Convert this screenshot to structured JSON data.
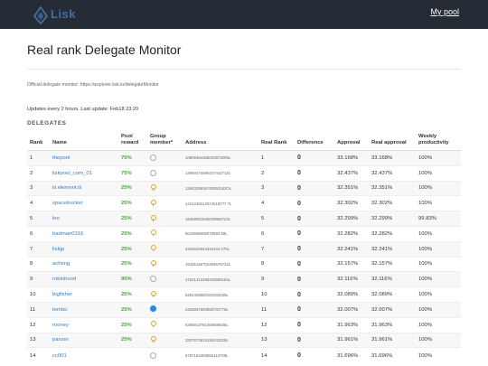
{
  "nav": {
    "logo_text": "Lisk",
    "link": "My pool"
  },
  "page": {
    "title": "Real rank Delegate Monitor",
    "official": "Official delegate monitor: https://explorer.lisk.io/delegateMonitor",
    "updates": "Updates every 2 hours. Last update: Feb18 23:20",
    "section": "DELEGATES"
  },
  "columns": {
    "rank": "Rank",
    "name": "Name",
    "reward": "Pool reward",
    "member": "Group member*",
    "address": "Address",
    "real_rank": "Real Rank",
    "difference": "Difference",
    "approval": "Approval",
    "real_approval": "Real approval",
    "productivity": "Weekly productivity"
  },
  "rows": [
    {
      "rank": "1",
      "name": "thepool",
      "reward": "70%",
      "member": "empty",
      "address": "10809494368003873009L",
      "real_rank": "1",
      "diff": "0",
      "approval": "33.168%",
      "real_approval": "33.168%",
      "productivity": "100%"
    },
    {
      "rank": "2",
      "name": "liskpool_com_01",
      "reward": "75%",
      "member": "empty",
      "address": "14593474056247442712L",
      "real_rank": "2",
      "diff": "0",
      "approval": "32.437%",
      "real_approval": "32.437%",
      "productivity": "100%"
    },
    {
      "rank": "3",
      "name": "iii.element.iii",
      "reward": "25%",
      "member": "pin",
      "address": "1394325616740553182OL",
      "real_rank": "3",
      "diff": "0",
      "approval": "32.351%",
      "real_approval": "32.351%",
      "productivity": "100%"
    },
    {
      "rank": "4",
      "name": "spacetrucker",
      "reward": "25%",
      "member": "pin",
      "address": "1421248412674618777 7L",
      "real_rank": "4",
      "diff": "0",
      "approval": "32.302%",
      "real_approval": "32.302%",
      "productivity": "100%"
    },
    {
      "rank": "5",
      "name": "leo",
      "reward": "25%",
      "member": "pin",
      "address": "15458001840048965724L",
      "real_rank": "5",
      "diff": "0",
      "approval": "32.299%",
      "real_approval": "32.299%",
      "productivity": "99.83%"
    },
    {
      "rank": "6",
      "name": "badman0316",
      "reward": "25%",
      "member": "pin",
      "address": "8019598606079593 88L",
      "real_rank": "6",
      "diff": "0",
      "approval": "32.282%",
      "real_approval": "32.282%",
      "productivity": "100%"
    },
    {
      "rank": "7",
      "name": "liskjp",
      "reward": "25%",
      "member": "pin",
      "address": "4402625644334434 270L",
      "real_rank": "7",
      "diff": "0",
      "approval": "32.241%",
      "real_approval": "32.241%",
      "productivity": "100%"
    },
    {
      "rank": "8",
      "name": "acheng",
      "reward": "25%",
      "member": "pin",
      "address": "15435156702499576722L",
      "real_rank": "8",
      "diff": "0",
      "approval": "32.157%",
      "real_approval": "32.157%",
      "productivity": "100%"
    },
    {
      "rank": "9",
      "name": "robinhood",
      "reward": "90%",
      "member": "empty",
      "address": "17621212458226596154L",
      "real_rank": "9",
      "diff": "0",
      "approval": "32.116%",
      "real_approval": "32.116%",
      "productivity": "100%"
    },
    {
      "rank": "10",
      "name": "bigfisher",
      "reward": "25%",
      "member": "pin",
      "address": "6281405850162033335L",
      "real_rank": "10",
      "diff": "0",
      "approval": "32.089%",
      "real_approval": "32.089%",
      "productivity": "100%"
    },
    {
      "rank": "11",
      "name": "tembo",
      "reward": "25%",
      "member": "blue",
      "address": "2433857900558702776L",
      "real_rank": "11",
      "diff": "0",
      "approval": "32.007%",
      "real_approval": "32.007%",
      "productivity": "100%"
    },
    {
      "rank": "12",
      "name": "rooney",
      "reward": "25%",
      "member": "pin",
      "address": "6356913781456505636L",
      "real_rank": "12",
      "diff": "0",
      "approval": "31.963%",
      "real_approval": "31.963%",
      "productivity": "100%"
    },
    {
      "rank": "13",
      "name": "panzer",
      "reward": "25%",
      "member": "pin",
      "address": "3207673513436243226L",
      "real_rank": "13",
      "diff": "0",
      "approval": "31.961%",
      "real_approval": "31.961%",
      "productivity": "100%"
    },
    {
      "rank": "14",
      "name": "cc001",
      "reward": "",
      "member": "empty",
      "address": "6787154358850114739L",
      "real_rank": "14",
      "diff": "0",
      "approval": "31.696%",
      "real_approval": "31.696%",
      "productivity": "100%"
    }
  ]
}
